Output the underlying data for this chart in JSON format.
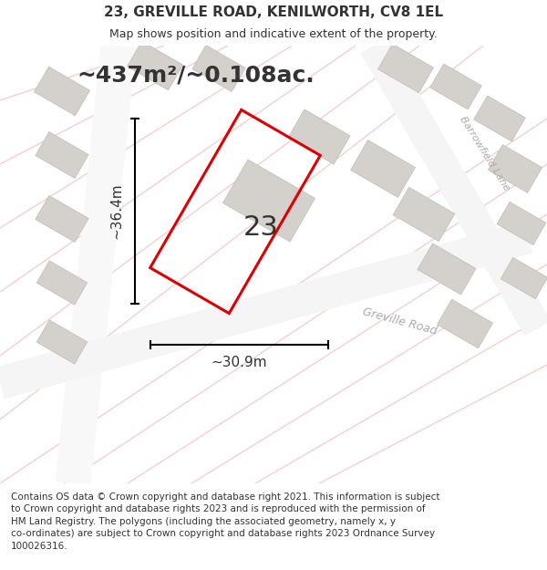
{
  "title": "23, GREVILLE ROAD, KENILWORTH, CV8 1EL",
  "subtitle": "Map shows position and indicative extent of the property.",
  "area_label": "~437m²/~0.108ac.",
  "width_label": "~30.9m",
  "height_label": "~36.4m",
  "number_label": "23",
  "footer_lines": [
    "Contains OS data © Crown copyright and database right 2021. This information is subject",
    "to Crown copyright and database rights 2023 and is reproduced with the permission of",
    "HM Land Registry. The polygons (including the associated geometry, namely x, y",
    "co-ordinates) are subject to Crown copyright and database rights 2023 Ordnance Survey",
    "100026316."
  ],
  "bg_color": "#f0eeeb",
  "building_color": "#d4d0cb",
  "building_edge_color": "#c0bcb7",
  "plot_outline_color": "#dd0000",
  "text_color": "#333333",
  "road_label_color": "#aaaaaa",
  "figsize": [
    6.0,
    6.25
  ],
  "dpi": 100,
  "title_fontsize": 11,
  "subtitle_fontsize": 9,
  "area_fontsize": 18,
  "number_fontsize": 22,
  "dim_fontsize": 11,
  "footer_fontsize": 7.5
}
